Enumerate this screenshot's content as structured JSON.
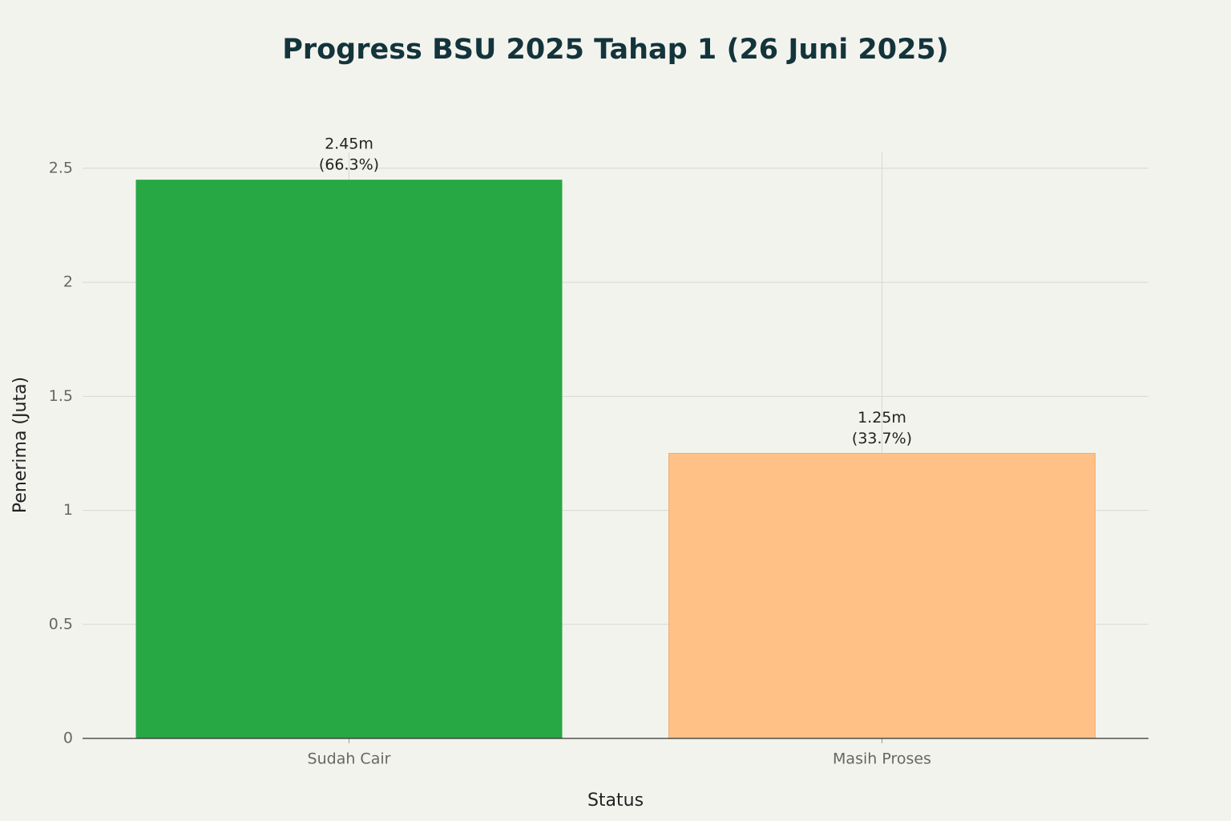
{
  "chart_data": {
    "type": "bar",
    "title": "Progress BSU 2025 Tahap 1 (26 Juni 2025)",
    "x_label": "Status",
    "y_label": "Penerima (Juta)",
    "categories": [
      "Sudah Cair",
      "Masih Proses"
    ],
    "values": [
      2.45,
      1.25
    ],
    "value_labels": [
      "2.45m",
      "1.25m"
    ],
    "share_labels": [
      "(66.3%)",
      "(33.7%)"
    ],
    "colors": [
      "#28a745",
      "#ffc185"
    ],
    "ylim": [
      0,
      2.57
    ],
    "yticks": [
      0,
      0.5,
      1,
      1.5,
      2,
      2.5
    ],
    "grid": true
  }
}
